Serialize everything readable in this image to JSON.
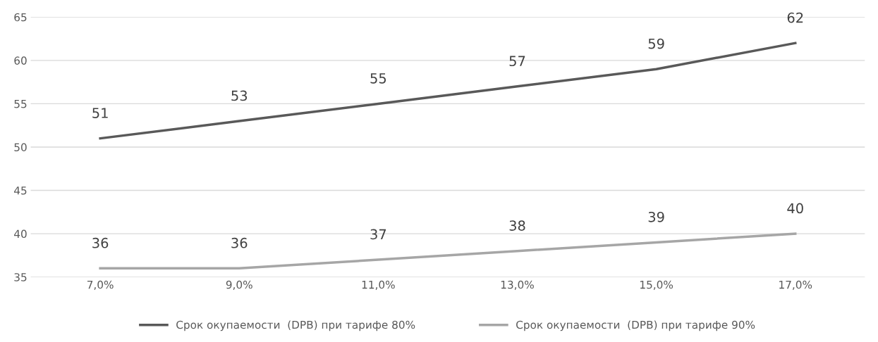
{
  "chart_data": {
    "type": "line",
    "categories": [
      "7,0%",
      "9,0%",
      "11,0%",
      "13,0%",
      "15,0%",
      "17,0%"
    ],
    "series": [
      {
        "name": "Срок окупаемости  (DPB) при тарифе 80%",
        "color": "#595959",
        "values": [
          51,
          53,
          55,
          57,
          59,
          62
        ]
      },
      {
        "name": "Срок окупаемости  (DPB) при тарифе 90%",
        "color": "#a6a6a6",
        "values": [
          36,
          36,
          37,
          38,
          39,
          40
        ]
      }
    ],
    "ylim": [
      35,
      65
    ],
    "yticks": [
      35,
      40,
      45,
      50,
      55,
      60,
      65
    ],
    "grid": "y",
    "legend": "bottom",
    "data_labels": true,
    "marker": "none",
    "line_style": "solid"
  }
}
